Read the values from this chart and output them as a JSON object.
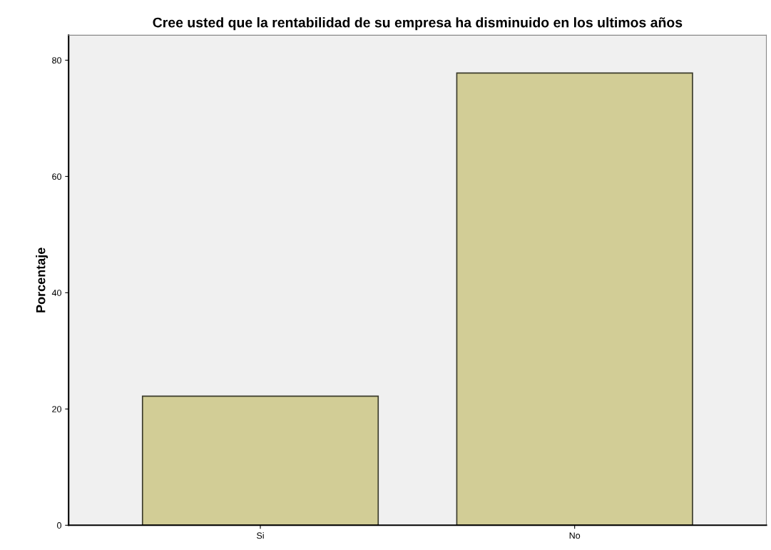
{
  "chart_data": {
    "type": "bar",
    "title": "Cree usted que la rentabilidad de su empresa ha disminuido en los ultimos años",
    "ylabel": "Porcentaje",
    "categories": [
      "Si",
      "No"
    ],
    "values": [
      22.2,
      77.8
    ],
    "color": "#d2cd96",
    "ylim": [
      0,
      84.3
    ],
    "yticks": [
      0,
      20,
      40,
      60,
      80
    ],
    "grid": false,
    "legend": false
  }
}
